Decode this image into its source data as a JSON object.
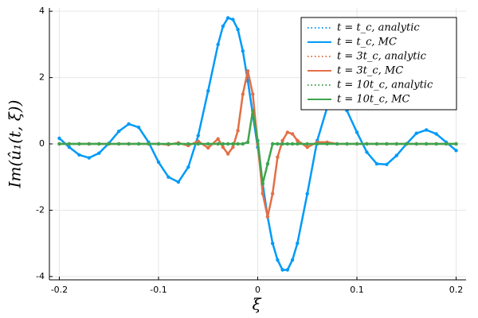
{
  "chart_data": {
    "type": "line",
    "xlabel": "ξ",
    "ylabel": "Im(û₁(t, ξ))",
    "x": [
      -0.2,
      -0.19,
      -0.18,
      -0.17,
      -0.16,
      -0.15,
      -0.14,
      -0.13,
      -0.12,
      -0.11,
      -0.1,
      -0.09,
      -0.08,
      -0.07,
      -0.06,
      -0.05,
      -0.04,
      -0.035,
      -0.03,
      -0.025,
      -0.02,
      -0.015,
      -0.01,
      -0.005,
      0,
      0.005,
      0.01,
      0.015,
      0.02,
      0.025,
      0.03,
      0.035,
      0.04,
      0.05,
      0.06,
      0.07,
      0.08,
      0.09,
      0.1,
      0.11,
      0.12,
      0.13,
      0.14,
      0.15,
      0.16,
      0.17,
      0.18,
      0.19,
      0.2
    ],
    "series": [
      {
        "name": "t = t_c, analytic",
        "color": "#009af9",
        "style": "dotted",
        "markers": false,
        "values": [
          0.17,
          -0.1,
          -0.33,
          -0.42,
          -0.28,
          0.02,
          0.38,
          0.6,
          0.5,
          0.05,
          -0.55,
          -1.0,
          -1.15,
          -0.7,
          0.25,
          1.6,
          3.0,
          3.55,
          3.8,
          3.75,
          3.45,
          2.8,
          1.9,
          0.9,
          -0.1,
          -1.2,
          -2.2,
          -3.0,
          -3.5,
          -3.8,
          -3.8,
          -3.5,
          -3.0,
          -1.5,
          0.1,
          1.1,
          1.3,
          1.0,
          0.35,
          -0.25,
          -0.6,
          -0.62,
          -0.35,
          0.0,
          0.32,
          0.42,
          0.3,
          0.05,
          -0.2
        ]
      },
      {
        "name": "t = t_c, MC",
        "color": "#009af9",
        "style": "solid",
        "markers": true,
        "values": [
          0.17,
          -0.1,
          -0.33,
          -0.42,
          -0.28,
          0.02,
          0.38,
          0.6,
          0.5,
          0.05,
          -0.55,
          -1.0,
          -1.15,
          -0.7,
          0.25,
          1.6,
          3.0,
          3.55,
          3.8,
          3.75,
          3.45,
          2.8,
          1.9,
          0.9,
          -0.1,
          -1.2,
          -2.2,
          -3.0,
          -3.5,
          -3.8,
          -3.8,
          -3.5,
          -3.0,
          -1.5,
          0.1,
          1.1,
          1.3,
          1.0,
          0.35,
          -0.25,
          -0.6,
          -0.62,
          -0.35,
          0.0,
          0.32,
          0.42,
          0.3,
          0.05,
          -0.2
        ]
      },
      {
        "name": "t = 3t_c, analytic",
        "color": "#e26f46",
        "style": "dotted",
        "markers": false,
        "values": [
          0,
          0,
          0,
          0,
          0,
          0,
          0,
          0,
          0,
          0,
          0,
          -0.02,
          0.03,
          -0.05,
          0.08,
          -0.12,
          0.15,
          -0.1,
          -0.3,
          -0.1,
          0.4,
          1.5,
          2.2,
          1.5,
          0,
          -1.5,
          -2.2,
          -1.5,
          -0.4,
          0.1,
          0.35,
          0.3,
          0.1,
          -0.1,
          0.05,
          0.05,
          0,
          0,
          0,
          0,
          0,
          0,
          0,
          0,
          0,
          0,
          0,
          0,
          0
        ]
      },
      {
        "name": "t = 3t_c, MC",
        "color": "#e26f46",
        "style": "solid",
        "markers": true,
        "values": [
          0,
          0,
          0,
          0,
          0,
          0,
          0,
          0,
          0,
          0,
          0,
          -0.02,
          0.03,
          -0.05,
          0.08,
          -0.12,
          0.15,
          -0.1,
          -0.3,
          -0.1,
          0.4,
          1.5,
          2.2,
          1.5,
          0,
          -1.5,
          -2.2,
          -1.5,
          -0.4,
          0.1,
          0.35,
          0.3,
          0.1,
          -0.1,
          0.05,
          0.05,
          0,
          0,
          0,
          0,
          0,
          0,
          0,
          0,
          0,
          0,
          0,
          0,
          0
        ]
      },
      {
        "name": "t = 10t_c, analytic",
        "color": "#3ea44e",
        "style": "dotted",
        "markers": false,
        "values": [
          0,
          0,
          0,
          0,
          0,
          0,
          0,
          0,
          0,
          0,
          0,
          0,
          0,
          0,
          0,
          0,
          0,
          0,
          0,
          0,
          0,
          0,
          0.05,
          1.0,
          0.1,
          -1.2,
          -0.6,
          0,
          0,
          0,
          0,
          0,
          0,
          0,
          0,
          0,
          0,
          0,
          0,
          0,
          0,
          0,
          0,
          0,
          0,
          0,
          0,
          0,
          0
        ]
      },
      {
        "name": "t = 10t_c, MC",
        "color": "#3ea44e",
        "style": "solid",
        "markers": true,
        "values": [
          0,
          0,
          0,
          0,
          0,
          0,
          0,
          0,
          0,
          0,
          0,
          0,
          0,
          0,
          0,
          0,
          0,
          0,
          0,
          0,
          0,
          0,
          0.05,
          1.0,
          0.1,
          -1.2,
          -0.6,
          0,
          0,
          0,
          0,
          0,
          0,
          0,
          0,
          0,
          0,
          0,
          0,
          0,
          0,
          0,
          0,
          0,
          0,
          0,
          0,
          0,
          0
        ]
      }
    ],
    "xlim": [
      -0.21,
      0.21
    ],
    "xticks": [
      -0.2,
      -0.1,
      0,
      0.1,
      0.2
    ],
    "ylim": [
      -4.1,
      4.1
    ],
    "yticks": [
      -4,
      -2,
      0,
      2,
      4
    ],
    "grid": true,
    "legend": "top-right"
  }
}
